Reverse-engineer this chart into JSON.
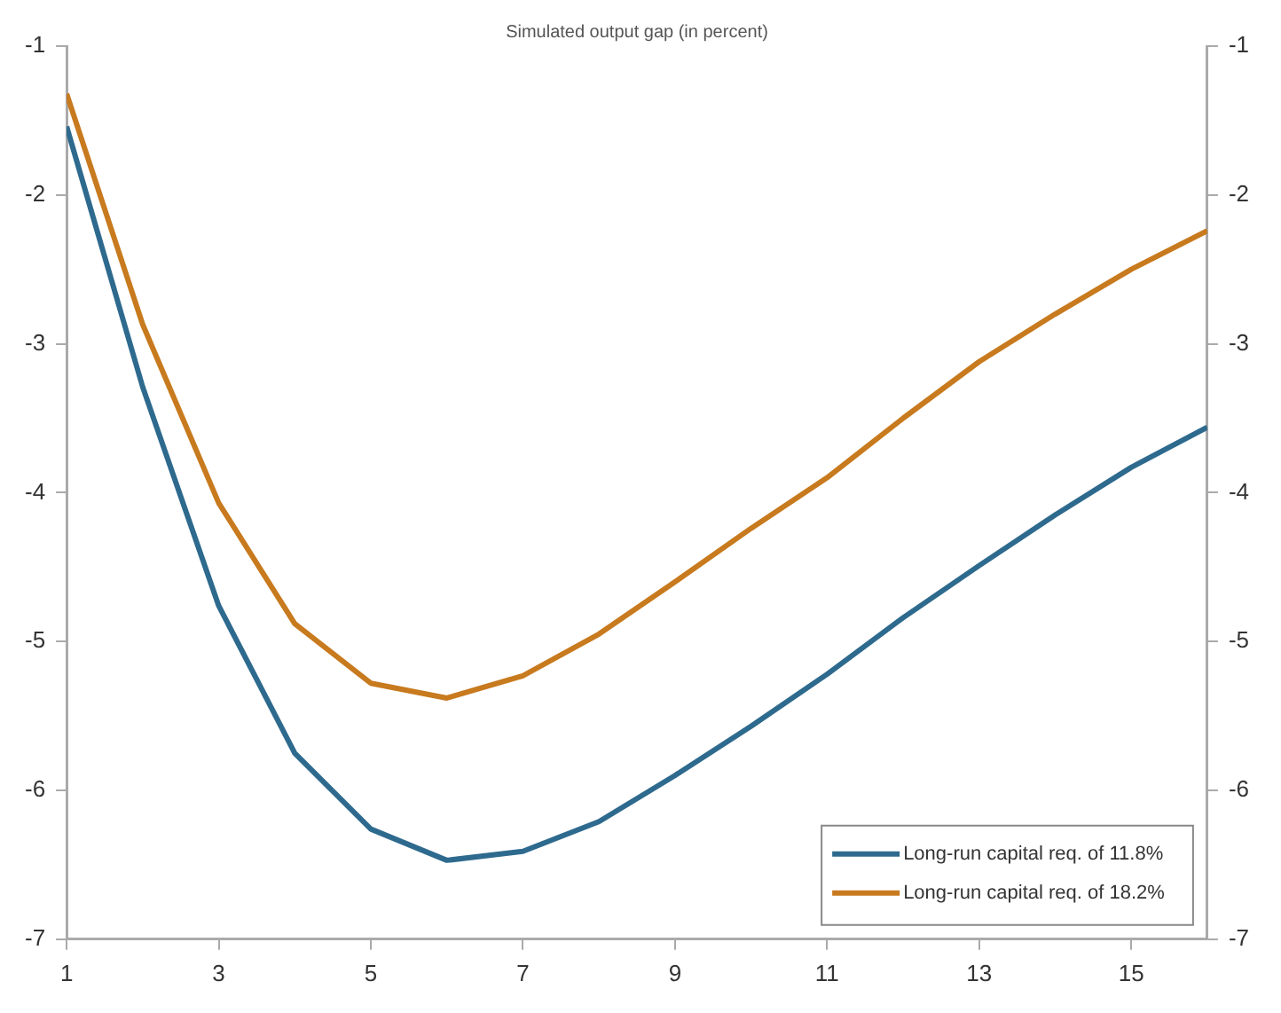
{
  "chart_data": {
    "type": "line",
    "title": "Simulated output gap (in percent)",
    "x": [
      1,
      2,
      3,
      4,
      5,
      6,
      7,
      8,
      9,
      10,
      11,
      12,
      13,
      14,
      15,
      16
    ],
    "series": [
      {
        "name": "Long-run capital req. of 11.8%",
        "color": "#2e6a8e",
        "values": [
          -1.54,
          -3.29,
          -4.76,
          -5.75,
          -6.26,
          -6.47,
          -6.41,
          -6.21,
          -5.9,
          -5.57,
          -5.22,
          -4.84,
          -4.49,
          -4.15,
          -3.83,
          -3.56
        ]
      },
      {
        "name": "Long-run capital req. of 18.2%",
        "color": "#c87a1e",
        "values": [
          -1.32,
          -2.87,
          -4.07,
          -4.88,
          -5.28,
          -5.38,
          -5.23,
          -4.95,
          -4.6,
          -4.24,
          -3.9,
          -3.5,
          -3.12,
          -2.8,
          -2.5,
          -2.24
        ]
      }
    ],
    "xlim": [
      1,
      16
    ],
    "xticks": [
      1,
      3,
      5,
      7,
      9,
      11,
      13,
      15
    ],
    "ylim": [
      -7,
      -1
    ],
    "yticks": [
      -7,
      -6,
      -5,
      -4,
      -3,
      -2,
      -1
    ],
    "y2lim": [
      -7,
      -1
    ],
    "y2ticks": [
      -7,
      -6,
      -5,
      -4,
      -3,
      -2,
      -1
    ],
    "grid": false,
    "legend": "bottom right",
    "marker": "none",
    "line_style": "solid"
  }
}
